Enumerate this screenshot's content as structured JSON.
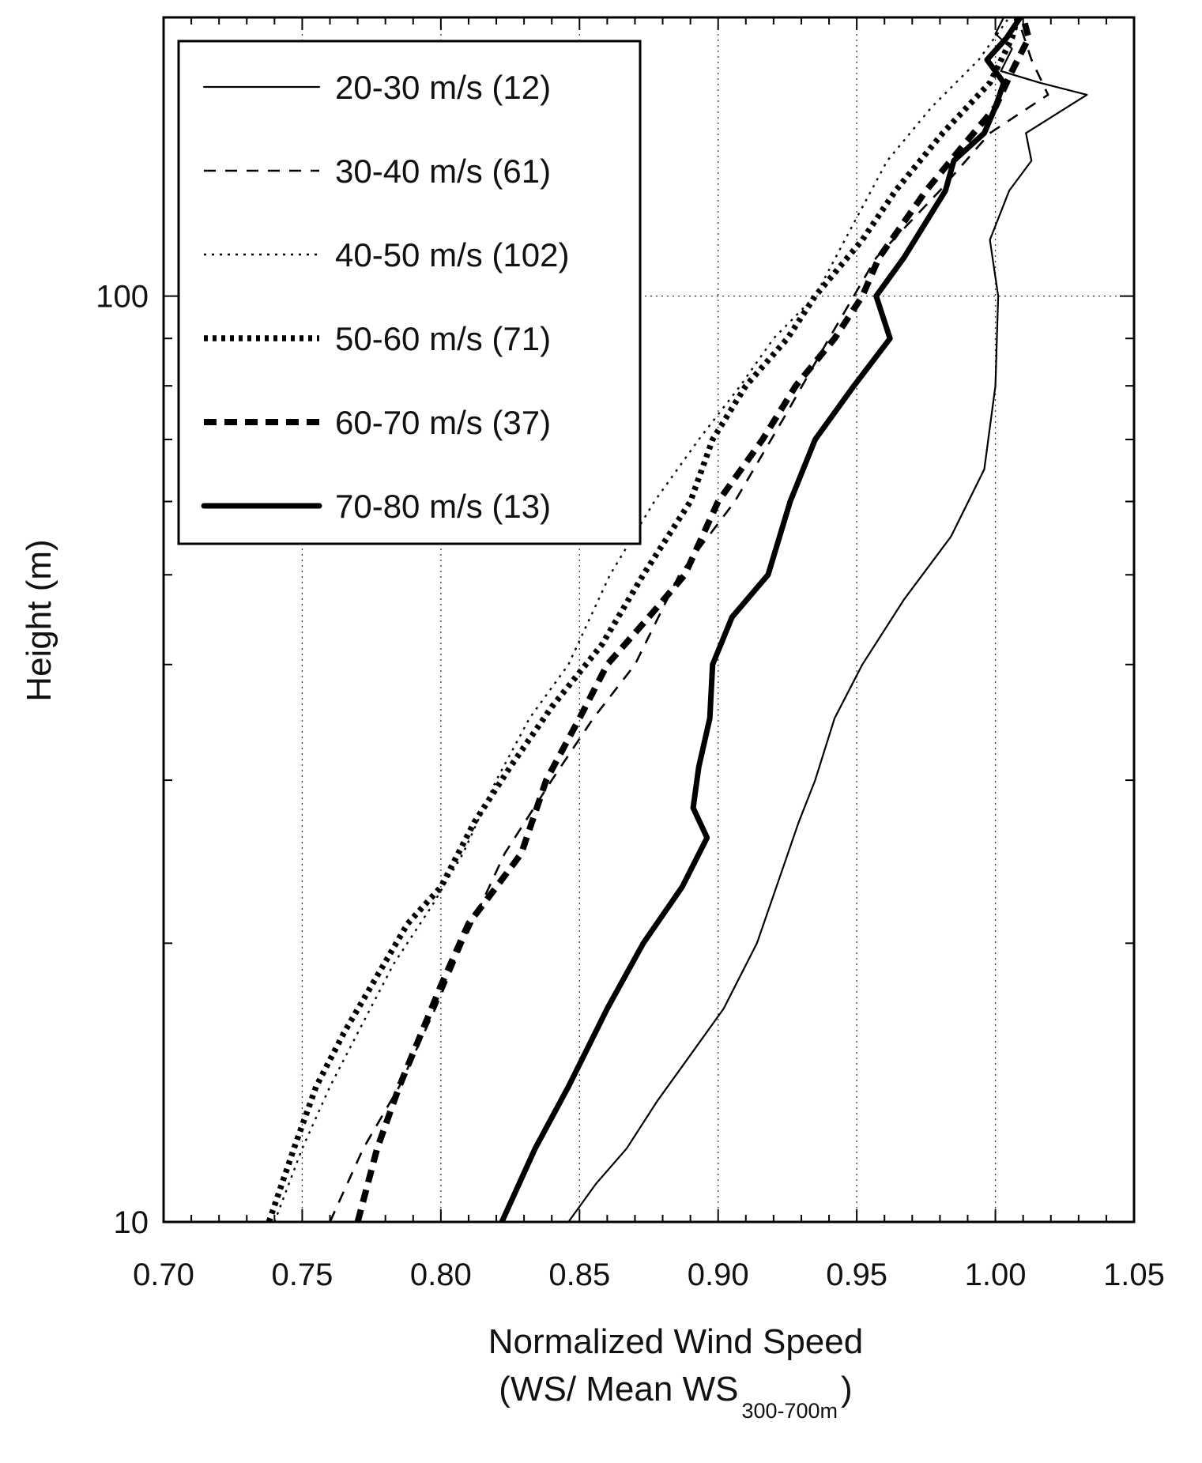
{
  "chart_data": {
    "type": "line",
    "xlabel": "Normalized Wind Speed",
    "xlabel_line2_prefix": "(WS/ Mean WS",
    "xlabel_line2_subscript": "300-700m",
    "xlabel_line2_suffix": ")",
    "ylabel": "Height (m)",
    "xlim": [
      0.7,
      1.05
    ],
    "ylim": [
      10,
      200
    ],
    "yscale": "log",
    "x_ticks": [
      "0.70",
      "0.75",
      "0.80",
      "0.85",
      "0.90",
      "0.95",
      "1.00",
      "1.05"
    ],
    "y_tick_labels": [
      "10",
      "100"
    ],
    "grid": true,
    "legend_position": "top-left",
    "series": [
      {
        "name": "20-30 m/s (12)",
        "style": "thin-solid",
        "points": [
          [
            0.846,
            10
          ],
          [
            0.856,
            11
          ],
          [
            0.867,
            12
          ],
          [
            0.878,
            13.5
          ],
          [
            0.889,
            15
          ],
          [
            0.902,
            17
          ],
          [
            0.914,
            20
          ],
          [
            0.921,
            23
          ],
          [
            0.929,
            27
          ],
          [
            0.935,
            30
          ],
          [
            0.942,
            35
          ],
          [
            0.952,
            40
          ],
          [
            0.967,
            47
          ],
          [
            0.984,
            55
          ],
          [
            0.996,
            65
          ],
          [
            1.0,
            80
          ],
          [
            1.001,
            100
          ],
          [
            0.998,
            115
          ],
          [
            1.005,
            130
          ],
          [
            1.013,
            140
          ],
          [
            1.011,
            150
          ],
          [
            1.033,
            165
          ],
          [
            1.016,
            170
          ],
          [
            1.002,
            175
          ],
          [
            1.006,
            185
          ],
          [
            1.0,
            192
          ],
          [
            1.003,
            200
          ]
        ]
      },
      {
        "name": "30-40 m/s (61)",
        "style": "thin-dash",
        "points": [
          [
            0.76,
            10
          ],
          [
            0.772,
            12
          ],
          [
            0.785,
            14
          ],
          [
            0.798,
            17
          ],
          [
            0.808,
            20
          ],
          [
            0.823,
            25
          ],
          [
            0.84,
            30
          ],
          [
            0.855,
            35
          ],
          [
            0.87,
            40
          ],
          [
            0.886,
            50
          ],
          [
            0.906,
            60
          ],
          [
            0.925,
            75
          ],
          [
            0.94,
            90
          ],
          [
            0.957,
            110
          ],
          [
            0.98,
            130
          ],
          [
            0.998,
            150
          ],
          [
            1.019,
            165
          ],
          [
            1.013,
            180
          ],
          [
            1.008,
            200
          ]
        ]
      },
      {
        "name": "40-50 m/s (102)",
        "style": "thin-dot",
        "points": [
          [
            0.74,
            10
          ],
          [
            0.75,
            12
          ],
          [
            0.76,
            14
          ],
          [
            0.77,
            16
          ],
          [
            0.783,
            19
          ],
          [
            0.797,
            22
          ],
          [
            0.808,
            25
          ],
          [
            0.82,
            30
          ],
          [
            0.832,
            35
          ],
          [
            0.846,
            40
          ],
          [
            0.861,
            50
          ],
          [
            0.877,
            60
          ],
          [
            0.893,
            70
          ],
          [
            0.908,
            80
          ],
          [
            0.92,
            90
          ],
          [
            0.935,
            100
          ],
          [
            0.949,
            120
          ],
          [
            0.961,
            140
          ],
          [
            0.977,
            160
          ],
          [
            0.994,
            180
          ],
          [
            1.005,
            200
          ]
        ]
      },
      {
        "name": "50-60 m/s (71)",
        "style": "thick-dot",
        "points": [
          [
            0.738,
            10
          ],
          [
            0.747,
            12
          ],
          [
            0.755,
            14
          ],
          [
            0.765,
            16
          ],
          [
            0.775,
            18
          ],
          [
            0.788,
            21
          ],
          [
            0.8,
            23
          ],
          [
            0.812,
            27
          ],
          [
            0.825,
            31
          ],
          [
            0.84,
            36
          ],
          [
            0.858,
            42
          ],
          [
            0.873,
            50
          ],
          [
            0.89,
            60
          ],
          [
            0.898,
            70
          ],
          [
            0.91,
            80
          ],
          [
            0.925,
            90
          ],
          [
            0.935,
            100
          ],
          [
            0.952,
            115
          ],
          [
            0.964,
            130
          ],
          [
            0.981,
            150
          ],
          [
            0.998,
            170
          ],
          [
            1.006,
            190
          ],
          [
            1.008,
            200
          ]
        ]
      },
      {
        "name": "60-70 m/s (37)",
        "style": "thick-dash",
        "points": [
          [
            0.77,
            10
          ],
          [
            0.777,
            12
          ],
          [
            0.785,
            14
          ],
          [
            0.793,
            16
          ],
          [
            0.8,
            18
          ],
          [
            0.81,
            21
          ],
          [
            0.82,
            23
          ],
          [
            0.829,
            25
          ],
          [
            0.838,
            30
          ],
          [
            0.85,
            35
          ],
          [
            0.86,
            40
          ],
          [
            0.875,
            45
          ],
          [
            0.888,
            50
          ],
          [
            0.9,
            60
          ],
          [
            0.916,
            70
          ],
          [
            0.928,
            80
          ],
          [
            0.942,
            90
          ],
          [
            0.952,
            100
          ],
          [
            0.958,
            110
          ],
          [
            0.975,
            130
          ],
          [
            0.988,
            145
          ],
          [
            1.0,
            160
          ],
          [
            1.006,
            175
          ],
          [
            1.012,
            190
          ],
          [
            1.01,
            200
          ]
        ]
      },
      {
        "name": "70-80 m/s (13)",
        "style": "thick-solid",
        "points": [
          [
            0.822,
            10
          ],
          [
            0.834,
            12
          ],
          [
            0.846,
            14
          ],
          [
            0.86,
            17
          ],
          [
            0.873,
            20
          ],
          [
            0.887,
            23
          ],
          [
            0.896,
            26
          ],
          [
            0.891,
            28
          ],
          [
            0.893,
            31
          ],
          [
            0.897,
            35
          ],
          [
            0.898,
            40
          ],
          [
            0.905,
            45
          ],
          [
            0.918,
            50
          ],
          [
            0.926,
            60
          ],
          [
            0.935,
            70
          ],
          [
            0.949,
            80
          ],
          [
            0.962,
            90
          ],
          [
            0.957,
            100
          ],
          [
            0.967,
            110
          ],
          [
            0.982,
            130
          ],
          [
            0.985,
            140
          ],
          [
            0.996,
            150
          ],
          [
            1.0,
            160
          ],
          [
            1.003,
            170
          ],
          [
            0.997,
            180
          ],
          [
            1.004,
            190
          ],
          [
            1.009,
            200
          ]
        ]
      }
    ]
  }
}
